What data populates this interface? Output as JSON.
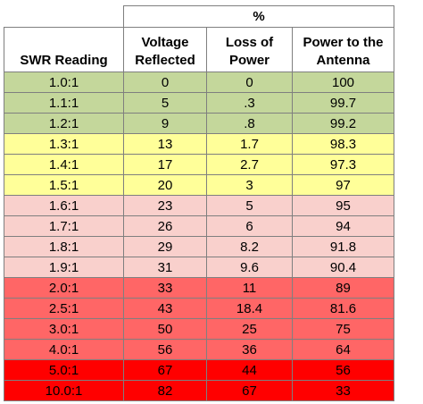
{
  "table": {
    "group_header": "%",
    "headers": {
      "col0": "SWR Reading",
      "col1": [
        "Voltage",
        "Reflected"
      ],
      "col2": [
        "Loss of",
        "Power"
      ],
      "col3": [
        "Power to the",
        "Antenna"
      ]
    },
    "band_colors": {
      "green": "#c4d79b",
      "yellow": "#ffff99",
      "pink": "#f9d0cc",
      "red": "#ff6666",
      "bright_red": "#ff0000"
    },
    "rows": [
      {
        "band": "green",
        "cells": [
          "1.0:1",
          "0",
          "0",
          "100"
        ]
      },
      {
        "band": "green",
        "cells": [
          "1.1:1",
          "5",
          ".3",
          "99.7"
        ]
      },
      {
        "band": "green",
        "cells": [
          "1.2:1",
          "9",
          ".8",
          "99.2"
        ]
      },
      {
        "band": "yellow",
        "cells": [
          "1.3:1",
          "13",
          "1.7",
          "98.3"
        ]
      },
      {
        "band": "yellow",
        "cells": [
          "1.4:1",
          "17",
          "2.7",
          "97.3"
        ]
      },
      {
        "band": "yellow",
        "cells": [
          "1.5:1",
          "20",
          "3",
          "97"
        ]
      },
      {
        "band": "pink",
        "cells": [
          "1.6:1",
          "23",
          "5",
          "95"
        ]
      },
      {
        "band": "pink",
        "cells": [
          "1.7:1",
          "26",
          "6",
          "94"
        ]
      },
      {
        "band": "pink",
        "cells": [
          "1.8:1",
          "29",
          "8.2",
          "91.8"
        ]
      },
      {
        "band": "pink",
        "cells": [
          "1.9:1",
          "31",
          "9.6",
          "90.4"
        ]
      },
      {
        "band": "red",
        "cells": [
          "2.0:1",
          "33",
          "11",
          "89"
        ]
      },
      {
        "band": "red",
        "cells": [
          "2.5:1",
          "43",
          "18.4",
          "81.6"
        ]
      },
      {
        "band": "red",
        "cells": [
          "3.0:1",
          "50",
          "25",
          "75"
        ]
      },
      {
        "band": "red",
        "cells": [
          "4.0:1",
          "56",
          "36",
          "64"
        ]
      },
      {
        "band": "bright_red",
        "cells": [
          "5.0:1",
          "67",
          "44",
          "56"
        ]
      },
      {
        "band": "bright_red",
        "cells": [
          "10.0:1",
          "82",
          "67",
          "33"
        ]
      }
    ]
  }
}
